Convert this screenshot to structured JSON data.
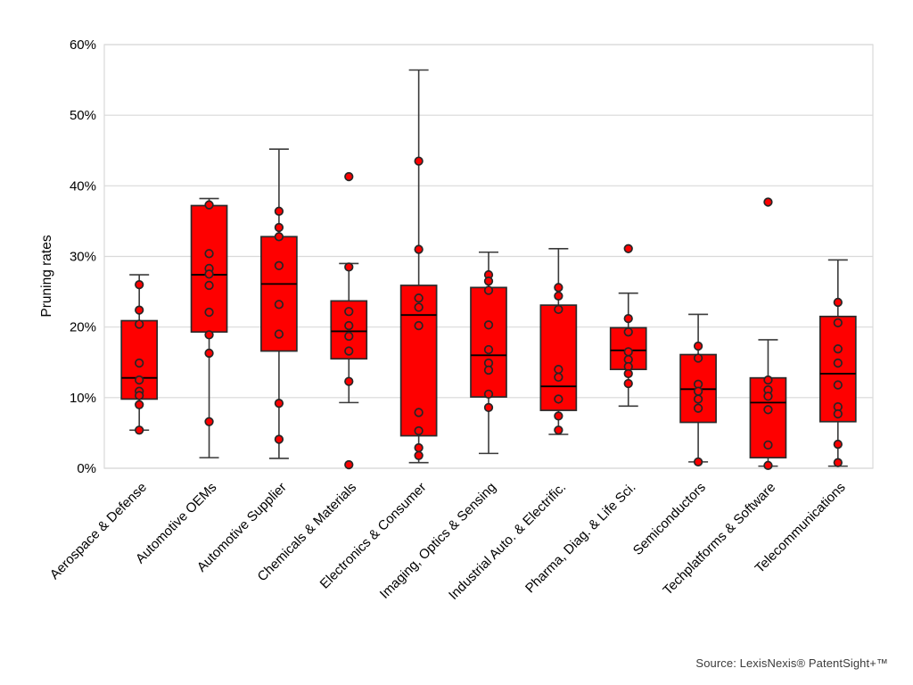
{
  "source": "Source: LexisNexis® PatentSight+™",
  "chart_data": {
    "type": "boxplot",
    "title": "",
    "xlabel": "",
    "ylabel": "Pruning rates",
    "ylim": [
      0,
      60
    ],
    "y_ticks": [
      0,
      10,
      20,
      30,
      40,
      50,
      60
    ],
    "y_tick_labels": [
      "0%",
      "10%",
      "20%",
      "30%",
      "40%",
      "50%",
      "60%"
    ],
    "grid": true,
    "legend": "none",
    "colors": {
      "box_fill": "#fe0000",
      "box_border": "#2b2b2b",
      "median": "#000000",
      "whisker": "#3a3a3a",
      "point_fill": "#fe0000",
      "point_stroke": "#262626",
      "grid_color": "#d9d9d9",
      "text_color": "#000000"
    },
    "categories": [
      "Aerospace & Defense",
      "Automotive OEMs",
      "Automotive Supplier",
      "Chemicals & Materials",
      "Electronics & Consumer",
      "Imaging, Optics & Sensing",
      "Industrial Auto. & Electrific.",
      "Pharma, Diag. & Life Sci.",
      "Semiconductors",
      "Techplatforms & Software",
      "Telecommunications"
    ],
    "series": [
      {
        "category": "Aerospace & Defense",
        "whisker_low": 5.4,
        "q1": 9.8,
        "median": 12.8,
        "q3": 20.9,
        "whisker_high": 27.4,
        "points": [
          26.0,
          22.4,
          20.4,
          14.9,
          12.5,
          10.9,
          10.3,
          9.0,
          5.4
        ]
      },
      {
        "category": "Automotive OEMs",
        "whisker_low": 1.5,
        "q1": 19.3,
        "median": 27.4,
        "q3": 37.2,
        "whisker_high": 38.2,
        "points": [
          37.3,
          30.4,
          28.3,
          27.5,
          25.9,
          22.1,
          18.9,
          16.3,
          6.6
        ]
      },
      {
        "category": "Automotive Supplier",
        "whisker_low": 1.4,
        "q1": 16.6,
        "median": 26.1,
        "q3": 32.8,
        "whisker_high": 45.2,
        "points": [
          36.4,
          34.1,
          32.8,
          28.7,
          23.2,
          19.0,
          9.2,
          4.1
        ]
      },
      {
        "category": "Chemicals & Materials",
        "whisker_low": 9.3,
        "q1": 15.5,
        "median": 19.4,
        "q3": 23.7,
        "whisker_high": 29.0,
        "points": [
          41.3,
          28.5,
          22.2,
          20.2,
          18.7,
          16.6,
          12.3,
          0.5
        ]
      },
      {
        "category": "Electronics & Consumer",
        "whisker_low": 0.8,
        "q1": 4.6,
        "median": 21.7,
        "q3": 25.9,
        "whisker_high": 56.4,
        "points": [
          43.5,
          31.0,
          24.1,
          22.8,
          20.2,
          7.9,
          5.3,
          2.9,
          1.8
        ]
      },
      {
        "category": "Imaging, Optics & Sensing",
        "whisker_low": 2.1,
        "q1": 10.1,
        "median": 16.0,
        "q3": 25.6,
        "whisker_high": 30.6,
        "points": [
          27.4,
          26.5,
          25.2,
          20.3,
          16.8,
          14.9,
          13.9,
          10.5,
          8.6
        ]
      },
      {
        "category": "Industrial Auto. & Electrific.",
        "whisker_low": 4.8,
        "q1": 8.2,
        "median": 11.6,
        "q3": 23.1,
        "whisker_high": 31.1,
        "points": [
          25.6,
          24.4,
          22.5,
          14.0,
          12.9,
          9.8,
          7.4,
          5.4
        ]
      },
      {
        "category": "Pharma, Diag. & Life Sci.",
        "whisker_low": 8.8,
        "q1": 14.0,
        "median": 16.7,
        "q3": 19.9,
        "whisker_high": 24.8,
        "points": [
          31.1,
          21.2,
          19.3,
          16.5,
          15.4,
          14.4,
          13.4,
          12.0
        ]
      },
      {
        "category": "Semiconductors",
        "whisker_low": 0.9,
        "q1": 6.5,
        "median": 11.2,
        "q3": 16.1,
        "whisker_high": 21.8,
        "points": [
          17.3,
          15.6,
          11.9,
          10.9,
          9.8,
          8.5,
          0.9
        ]
      },
      {
        "category": "Techplatforms & Software",
        "whisker_low": 0.3,
        "q1": 1.5,
        "median": 9.3,
        "q3": 12.8,
        "whisker_high": 18.2,
        "points": [
          37.7,
          12.5,
          11.1,
          10.2,
          8.3,
          3.3,
          0.4
        ]
      },
      {
        "category": "Telecommunications",
        "whisker_low": 0.3,
        "q1": 6.6,
        "median": 13.4,
        "q3": 21.5,
        "whisker_high": 29.5,
        "points": [
          23.5,
          20.6,
          16.9,
          14.9,
          11.8,
          8.7,
          7.7,
          3.4,
          0.8
        ]
      }
    ]
  }
}
